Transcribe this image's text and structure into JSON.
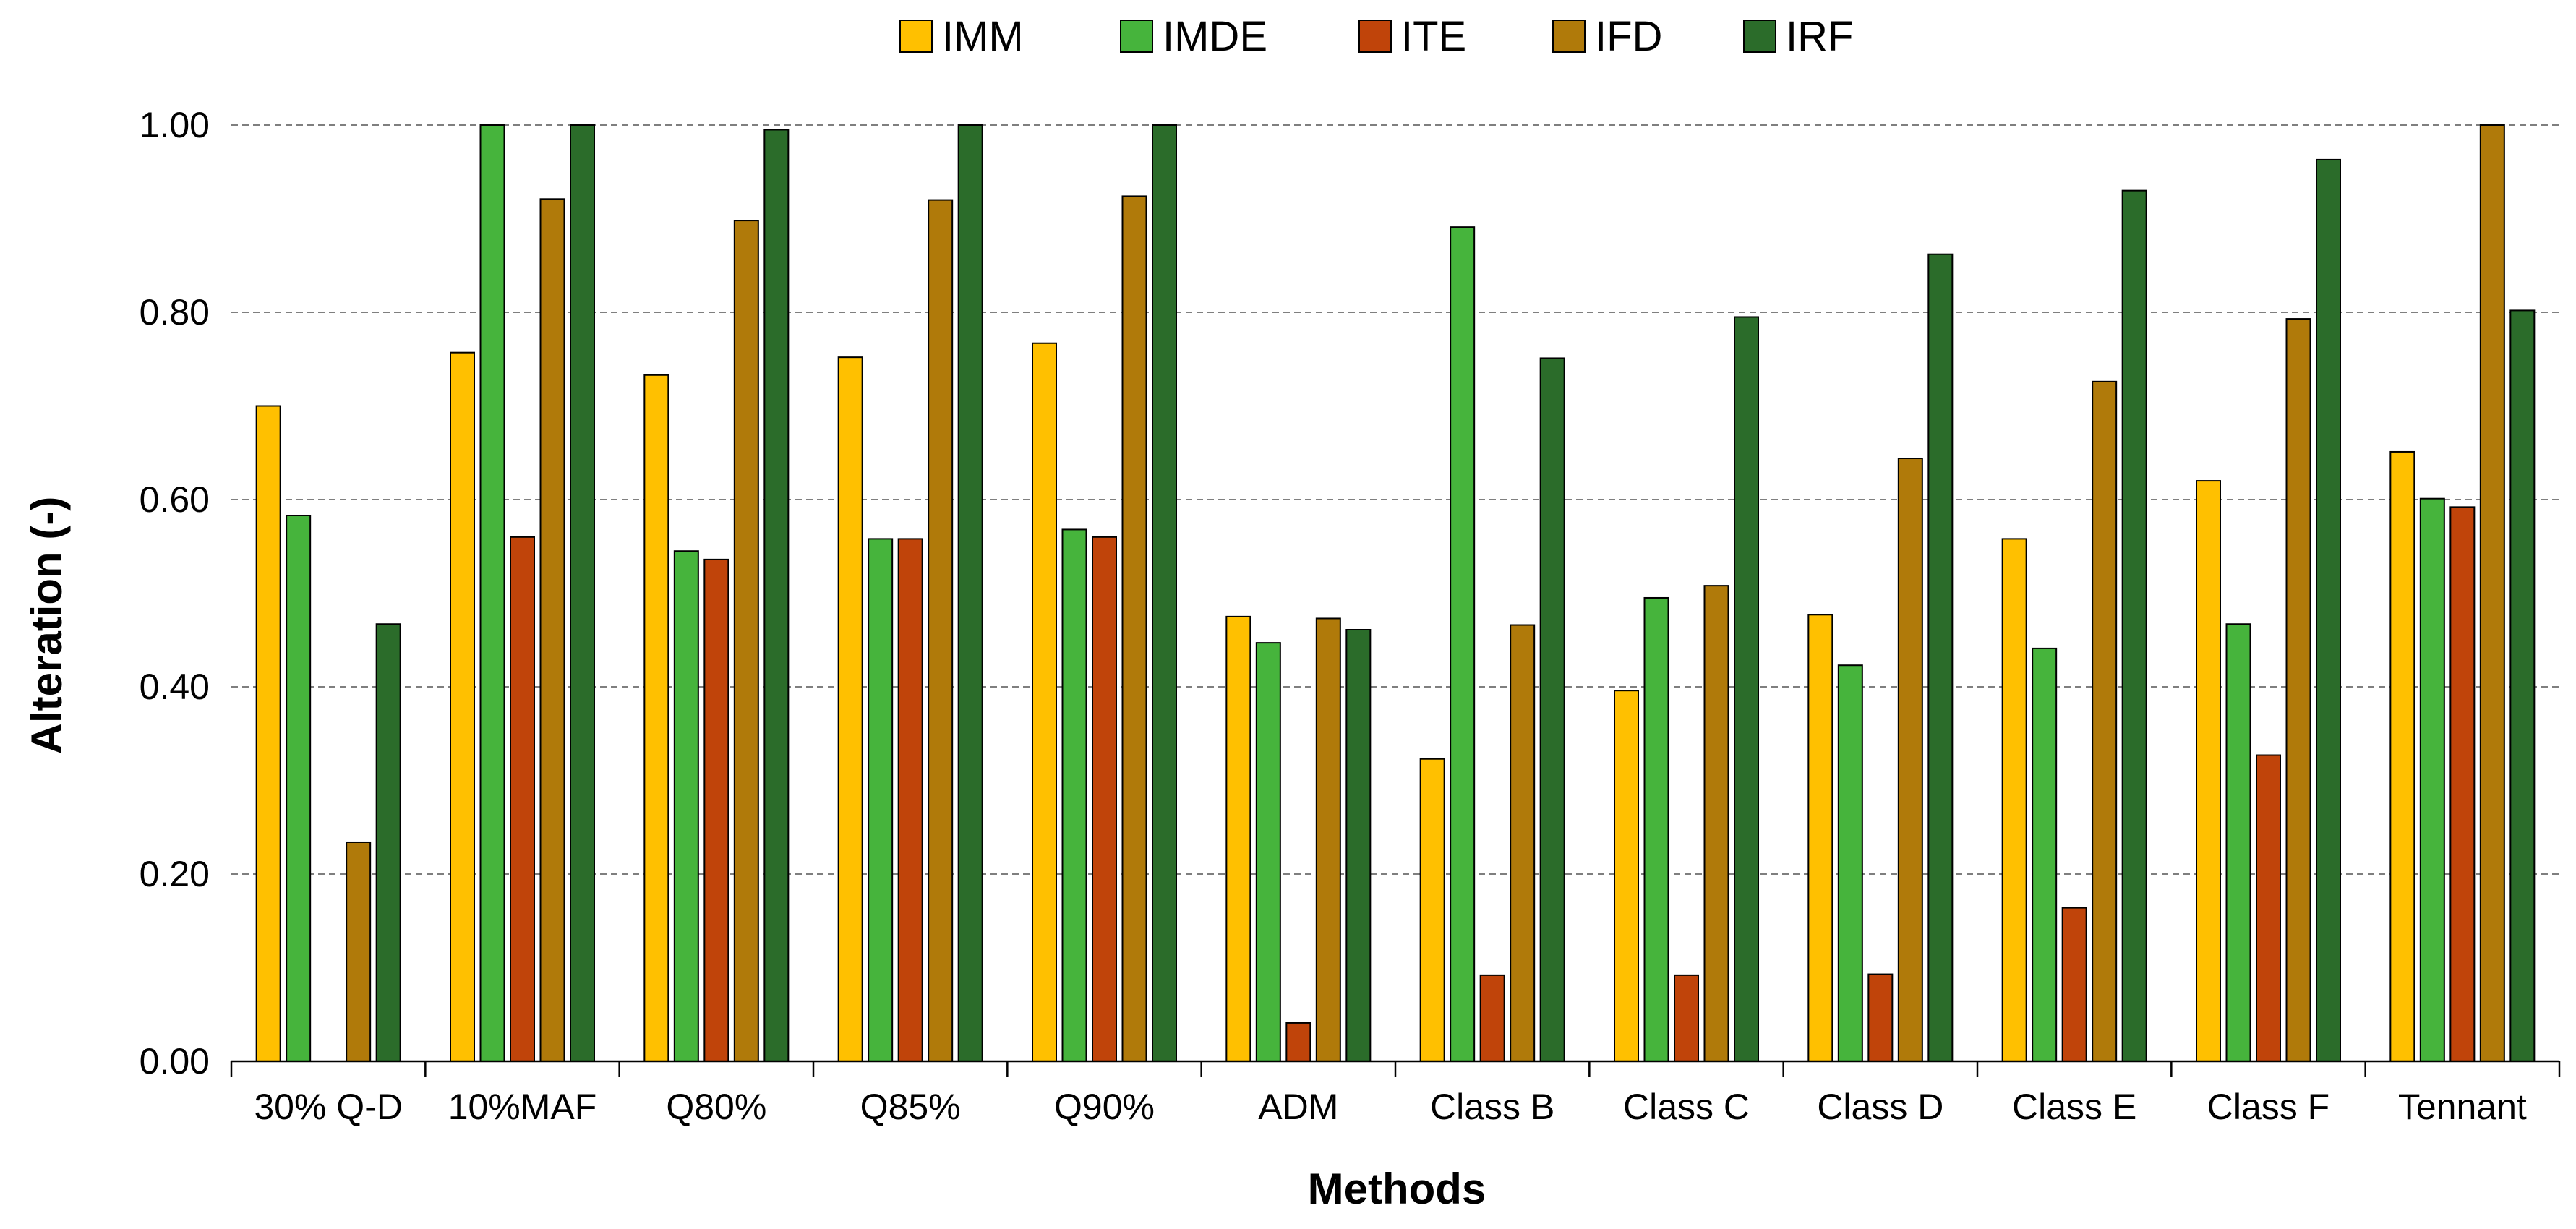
{
  "chart_data": {
    "type": "bar",
    "xlabel": "Methods",
    "ylabel": "Alteration (-)",
    "ylim": [
      0,
      1.0
    ],
    "yticks": [
      "0.00",
      "0.20",
      "0.40",
      "0.60",
      "0.80",
      "1.00"
    ],
    "grid": "horizontal dashed",
    "legend_position": "top-center",
    "categories": [
      "30% Q-D",
      "10%MAF",
      "Q80%",
      "Q85%",
      "Q90%",
      "ADM",
      "Class B",
      "Class C",
      "Class D",
      "Class E",
      "Class F",
      "Tennant"
    ],
    "series": [
      {
        "name": "IMM",
        "color": "#FFC000",
        "values": [
          0.7,
          0.757,
          0.733,
          0.752,
          0.767,
          0.475,
          0.323,
          0.396,
          0.477,
          0.558,
          0.62,
          0.651
        ]
      },
      {
        "name": "IMDE",
        "color": "#46B43C",
        "values": [
          0.583,
          1.0,
          0.545,
          0.558,
          0.568,
          0.447,
          0.891,
          0.495,
          0.423,
          0.441,
          0.467,
          0.601
        ]
      },
      {
        "name": "ITE",
        "color": "#C0440A",
        "values": [
          null,
          0.56,
          0.536,
          0.558,
          0.56,
          0.041,
          0.092,
          0.092,
          0.093,
          0.164,
          0.327,
          0.592
        ]
      },
      {
        "name": "IFD",
        "color": "#B07A0A",
        "values": [
          0.234,
          0.921,
          0.898,
          0.92,
          0.924,
          0.473,
          0.466,
          0.508,
          0.644,
          0.726,
          0.793,
          1.0
        ]
      },
      {
        "name": "IRF",
        "color": "#2B6C2A",
        "values": [
          0.467,
          1.0,
          0.995,
          1.0,
          1.0,
          0.461,
          0.751,
          0.795,
          0.862,
          0.93,
          0.963,
          0.802
        ]
      }
    ]
  }
}
